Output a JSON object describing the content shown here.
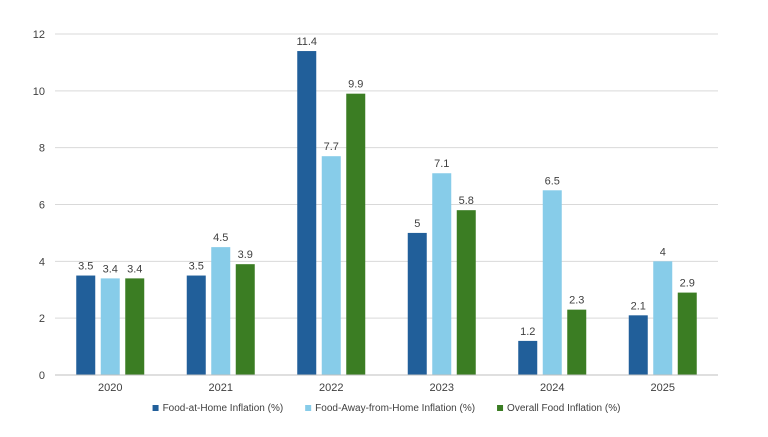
{
  "chart_data": {
    "type": "bar",
    "categories": [
      "2020",
      "2021",
      "2022",
      "2023",
      "2024",
      "2025"
    ],
    "series": [
      {
        "name": "Food-at-Home Inflation (%)",
        "color": "#215f9a",
        "values": [
          3.5,
          3.5,
          11.4,
          5,
          1.2,
          2.1
        ]
      },
      {
        "name": "Food-Away-from-Home Inflation (%)",
        "color": "#87cce9",
        "values": [
          3.4,
          4.5,
          7.7,
          7.1,
          6.5,
          4
        ]
      },
      {
        "name": "Overall Food Inflation (%)",
        "color": "#3b7d23",
        "values": [
          3.4,
          3.9,
          9.9,
          5.8,
          2.3,
          2.9
        ]
      }
    ],
    "yticks": [
      "0",
      "2",
      "4",
      "6",
      "8",
      "10",
      "12"
    ],
    "ylim": [
      0,
      12
    ],
    "grid": true,
    "legend_position": "bottom",
    "title": "",
    "xlabel": "",
    "ylabel": ""
  }
}
